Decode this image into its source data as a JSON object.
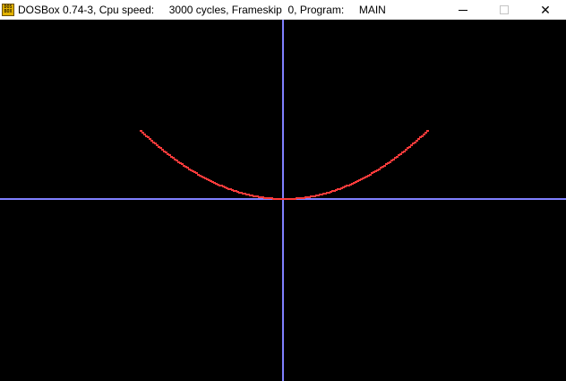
{
  "window": {
    "title": "DOSBox 0.74-3, Cpu speed:     3000 cycles, Frameskip  0, Program:     MAIN",
    "icon_text": "DOS BOX",
    "controls": {
      "minimize": "minimize-icon",
      "maximize": "maximize-icon",
      "close": "close-icon"
    }
  },
  "program_display": {
    "background_color": "#000000",
    "axis_color": "#8080ff",
    "curve_color": "#ff3b3b"
  }
}
